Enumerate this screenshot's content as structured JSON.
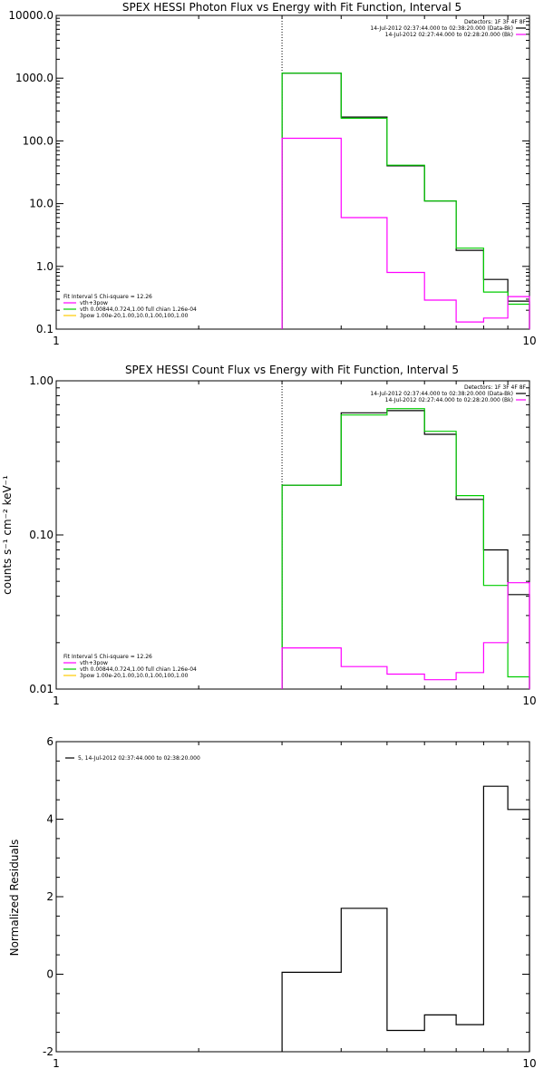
{
  "chart_data": [
    {
      "type": "line",
      "title": "SPEX HESSI Photon Flux vs Energy with Fit Function, Interval 5",
      "ylabel": "",
      "xlabel": "",
      "xscale": "log",
      "yscale": "log",
      "xlim": [
        1,
        10
      ],
      "ylim": [
        0.1,
        10000
      ],
      "xticks": [
        "1",
        "10"
      ],
      "yticks": [
        "0.1",
        "1.0",
        "10.0",
        "100.0",
        "1000.0",
        "10000.0"
      ],
      "dotted_line_x": 3,
      "legend_top_right": {
        "header": "Detectors: 1F 3F 4F 8F",
        "entries": [
          {
            "text": "14-Jul-2012 02:37:44.000 to 02:38:20.000 (Data-Bk)",
            "color": "#000000"
          },
          {
            "text": "14-Jul-2012 02:27:44.000 to 02:28:20.000 (Bk)",
            "color": "#ff00ff"
          }
        ]
      },
      "legend_bottom_left": {
        "header": "Fit Interval 5   Chi-square = 12.26",
        "entries": [
          {
            "text": "vth+3pow",
            "color": "#ff00ff"
          },
          {
            "text": "vth 0.00844,0.724,1.00  full chian 1.26e-04",
            "color": "#00cc00"
          },
          {
            "text": "3pow 1.00e-20,1.00,10.0,1.00,100,1.00",
            "color": "#ffcc00"
          }
        ]
      },
      "x_edges": [
        3,
        4,
        5,
        6,
        7,
        8,
        9,
        10
      ],
      "series": [
        {
          "color": "#000000",
          "values": [
            1200,
            240,
            40,
            11,
            1.8,
            0.62,
            0.28
          ]
        },
        {
          "color": "#00cc00",
          "values": [
            1200,
            230,
            41,
            11,
            1.95,
            0.39,
            0.25
          ]
        },
        {
          "color": "#ff00ff",
          "values": [
            110,
            6,
            0.8,
            0.29,
            0.13,
            0.15,
            0.33
          ]
        }
      ]
    },
    {
      "type": "line",
      "title": "SPEX HESSI Count Flux vs Energy with Fit Function, Interval 5",
      "ylabel": "counts s⁻¹ cm⁻² keV⁻¹",
      "xlabel": "",
      "xscale": "log",
      "yscale": "log",
      "xlim": [
        1,
        10
      ],
      "ylim": [
        0.01,
        1
      ],
      "xticks": [
        "1",
        "10"
      ],
      "yticks": [
        "0.01",
        "0.10",
        "1.00"
      ],
      "dotted_line_x": 3,
      "legend_top_right": {
        "header": "Detectors: 1F 3F 4F 8F",
        "entries": [
          {
            "text": "14-Jul-2012 02:37:44.000 to 02:38:20.000 (Data-Bk)",
            "color": "#000000"
          },
          {
            "text": "14-Jul-2012 02:27:44.000 to 02:28:20.000 (Bk)",
            "color": "#ff00ff"
          }
        ]
      },
      "legend_bottom_left": {
        "header": "Fit Interval 5   Chi-square = 12.26",
        "entries": [
          {
            "text": "vth+3pow",
            "color": "#ff00ff"
          },
          {
            "text": "vth 0.00844,0.724,1.00  full chian 1.26e-04",
            "color": "#00cc00"
          },
          {
            "text": "3pow 1.00e-20,1.00,10.0,1.00,100,1.00",
            "color": "#ffcc00"
          }
        ]
      },
      "x_edges": [
        3,
        4,
        5,
        6,
        7,
        8,
        9,
        10
      ],
      "series": [
        {
          "color": "#000000",
          "values": [
            0.21,
            0.62,
            0.64,
            0.45,
            0.17,
            0.08,
            0.041
          ]
        },
        {
          "color": "#00cc00",
          "values": [
            0.21,
            0.6,
            0.66,
            0.47,
            0.18,
            0.047,
            0.012
          ]
        },
        {
          "color": "#ff00ff",
          "values": [
            0.0185,
            0.014,
            0.0125,
            0.0115,
            0.0128,
            0.02,
            0.049
          ]
        }
      ]
    },
    {
      "type": "line",
      "title": "",
      "ylabel": "Normalized Residuals",
      "xlabel": "",
      "xscale": "log",
      "yscale": "linear",
      "xlim": [
        1,
        10
      ],
      "ylim": [
        -2,
        6
      ],
      "xticks": [
        "1",
        "10"
      ],
      "yticks": [
        "-2",
        "0",
        "2",
        "4",
        "6"
      ],
      "legend_top_left": {
        "entries": [
          {
            "text": "5, 14-Jul-2012 02:37:44.000 to 02:38:20.000",
            "color": "#000000"
          }
        ]
      },
      "x_edges": [
        3,
        4,
        5,
        6,
        7,
        8,
        9,
        10
      ],
      "series": [
        {
          "color": "#000000",
          "values": [
            0.05,
            1.7,
            -1.45,
            -1.05,
            -1.3,
            4.85,
            4.25
          ]
        }
      ]
    }
  ]
}
